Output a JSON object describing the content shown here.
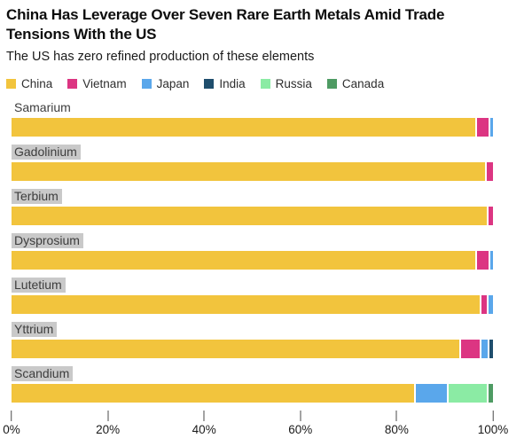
{
  "header": {
    "title_line1": "China Has Leverage Over Seven Rare Earth Metals Amid Trade",
    "title_line2": "Tensions With the US",
    "subtitle": "The US has zero refined production of these elements"
  },
  "colors": {
    "background": "#FFFFFF",
    "label_highlight": "#C9C9C9",
    "tick": "#4A4A4A"
  },
  "chart_data": {
    "type": "bar",
    "orientation": "horizontal",
    "stacked": true,
    "unit": "%",
    "grid": false,
    "legend_position": "top",
    "categories": [
      "Samarium",
      "Gadolinium",
      "Terbium",
      "Dysprosium",
      "Lutetium",
      "Yttrium",
      "Scandium"
    ],
    "label_highlighted": [
      false,
      true,
      true,
      true,
      true,
      true,
      true
    ],
    "series": [
      {
        "name": "China",
        "color": "#F2C43D",
        "values": [
          97,
          98.7,
          99,
          97,
          98,
          94,
          84.5
        ]
      },
      {
        "name": "Vietnam",
        "color": "#DC3582",
        "values": [
          2.5,
          1.3,
          1,
          2.5,
          1,
          4,
          0
        ]
      },
      {
        "name": "Japan",
        "color": "#5AA7EB",
        "values": [
          0.5,
          0,
          0,
          0.5,
          1,
          1.3,
          6.5
        ]
      },
      {
        "name": "India",
        "color": "#1F4E6D",
        "values": [
          0,
          0,
          0,
          0,
          0,
          0.7,
          0
        ]
      },
      {
        "name": "Russia",
        "color": "#8BEBA4",
        "values": [
          0,
          0,
          0,
          0,
          0,
          0,
          8
        ]
      },
      {
        "name": "Canada",
        "color": "#4E9B63",
        "values": [
          0,
          0,
          0,
          0,
          0,
          0,
          1
        ]
      }
    ],
    "xlim": [
      0,
      100
    ],
    "x_ticks": [
      "0%",
      "20%",
      "40%",
      "60%",
      "80%",
      "100%"
    ]
  }
}
